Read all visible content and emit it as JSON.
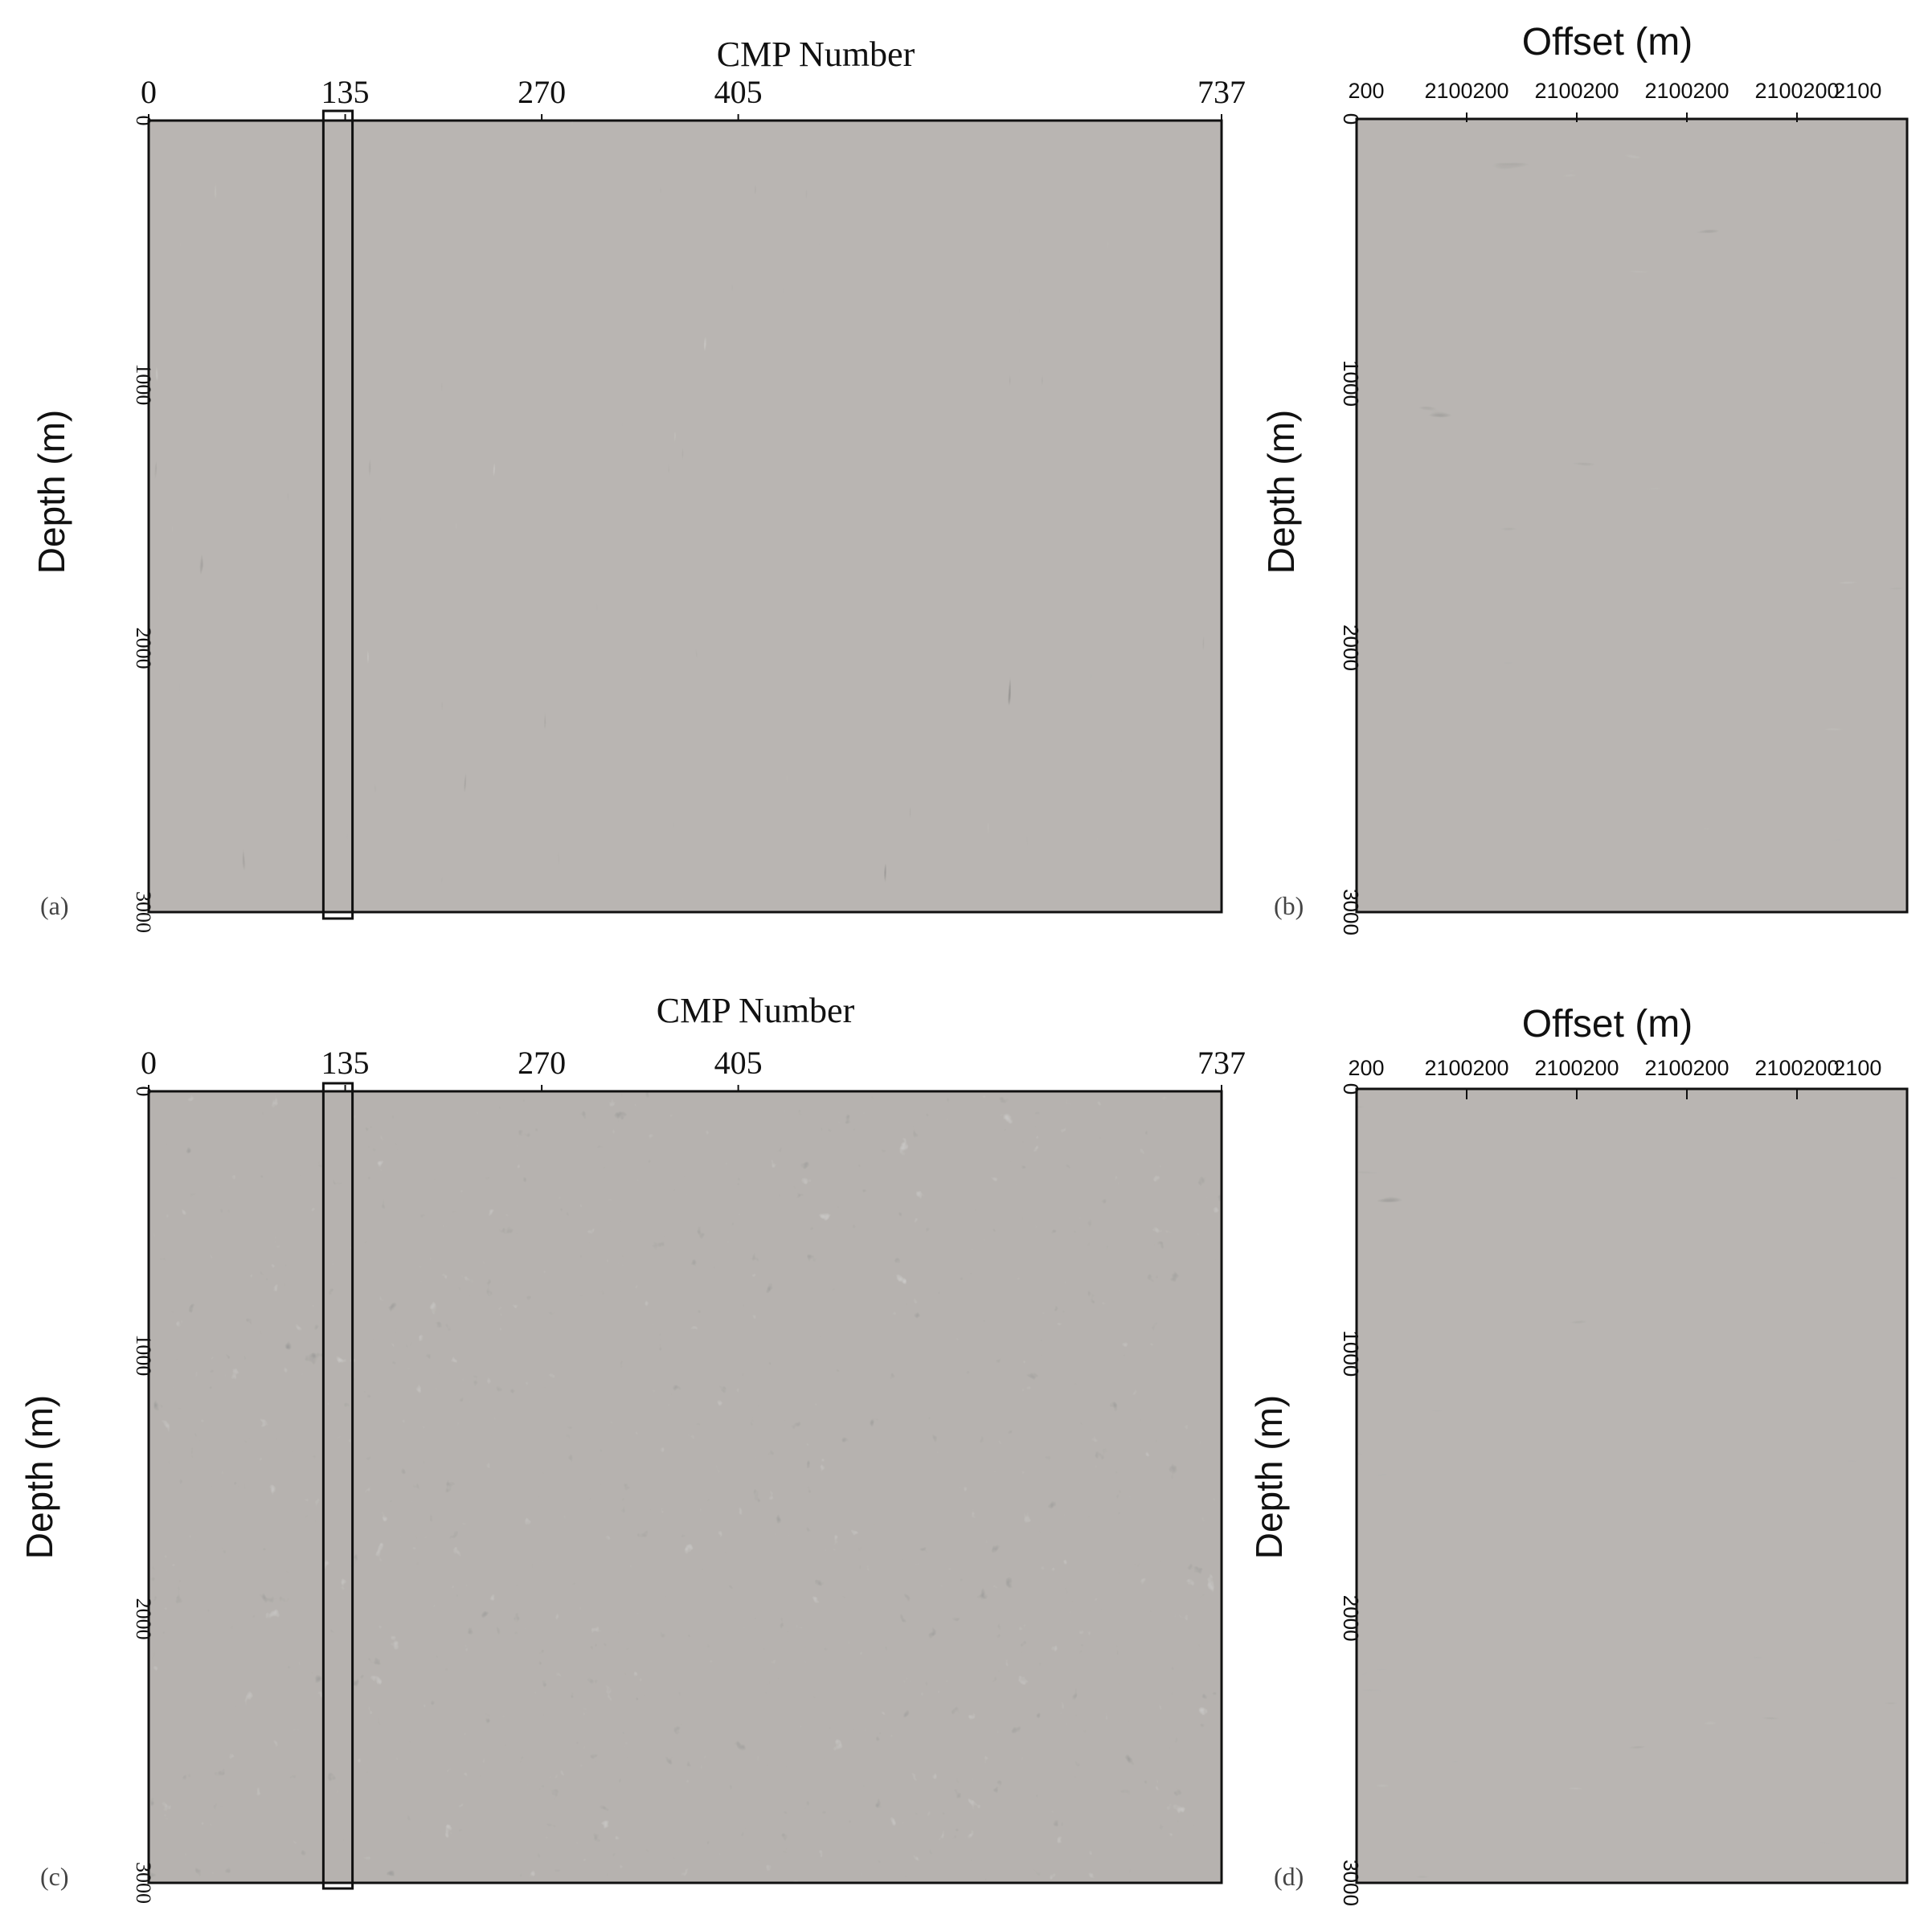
{
  "figure": {
    "panels": [
      {
        "id": "a",
        "tag": "(a)",
        "title": "CMP  Number",
        "ylabel": "Depth (m)",
        "xticks": [
          "0",
          "135",
          "270",
          "405",
          "737"
        ],
        "yticks": [
          "0",
          "1000",
          "2000",
          "3000"
        ],
        "highlight_box_label": "135"
      },
      {
        "id": "b",
        "tag": "(b)",
        "title": "Offset (m)",
        "ylabel": "Depth (m)",
        "xticks": [
          "200",
          "2100200",
          "2100200",
          "2100200",
          "2100200",
          "2100"
        ],
        "yticks": [
          "0",
          "1000",
          "2000",
          "3000"
        ]
      },
      {
        "id": "c",
        "tag": "(c)",
        "title": "CMP  Number",
        "ylabel": "Depth (m)",
        "xticks": [
          "0",
          "135",
          "270",
          "405",
          "737"
        ],
        "yticks": [
          "0",
          "1000",
          "2000",
          "3000"
        ],
        "highlight_box_label": "135"
      },
      {
        "id": "d",
        "tag": "(d)",
        "title": "Offset (m)",
        "ylabel": "Depth (m)",
        "xticks": [
          "200",
          "2100200",
          "2100200",
          "2100200",
          "2100200",
          "2100"
        ],
        "yticks": [
          "0",
          "1000",
          "2000",
          "3000"
        ]
      }
    ],
    "colors": {
      "background": "#ffffff",
      "seismic_gray": "#8a8580",
      "ink": "#111111"
    }
  },
  "chart_data": [
    {
      "type": "heatmap",
      "panel": "a",
      "title": "CMP  Number",
      "xlabel": "CMP  Number",
      "ylabel": "Depth (m)",
      "xlim": [
        0,
        737
      ],
      "ylim": [
        3000,
        0
      ],
      "x_tick_values": [
        0,
        135,
        270,
        405,
        737
      ],
      "y_tick_values": [
        0,
        1000,
        2000,
        3000
      ],
      "highlight_cmp_range": [
        120,
        140
      ],
      "grid": false
    },
    {
      "type": "heatmap",
      "panel": "b",
      "title": "Offset (m)",
      "xlabel": "Offset (m)",
      "ylabel": "Depth (m)",
      "ylim": [
        3000,
        0
      ],
      "offset_tick_values": [
        200,
        2100
      ],
      "gathers": 5,
      "y_tick_values": [
        0,
        1000,
        2000,
        3000
      ],
      "grid": false
    },
    {
      "type": "heatmap",
      "panel": "c",
      "title": "CMP  Number",
      "xlabel": "CMP  Number",
      "ylabel": "Depth (m)",
      "xlim": [
        0,
        737
      ],
      "ylim": [
        3000,
        0
      ],
      "x_tick_values": [
        0,
        135,
        270,
        405,
        737
      ],
      "y_tick_values": [
        0,
        1000,
        2000,
        3000
      ],
      "highlight_cmp_range": [
        120,
        140
      ],
      "grid": false
    },
    {
      "type": "heatmap",
      "panel": "d",
      "title": "Offset (m)",
      "xlabel": "Offset (m)",
      "ylabel": "Depth (m)",
      "ylim": [
        3000,
        0
      ],
      "offset_tick_values": [
        200,
        2100
      ],
      "gathers": 5,
      "y_tick_values": [
        0,
        1000,
        2000,
        3000
      ],
      "grid": false
    }
  ]
}
